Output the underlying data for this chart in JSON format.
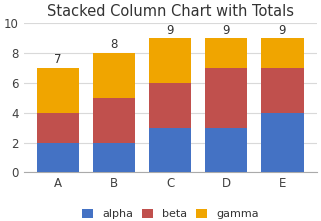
{
  "categories": [
    "A",
    "B",
    "C",
    "D",
    "E"
  ],
  "alpha": [
    2,
    2,
    3,
    3,
    4
  ],
  "beta": [
    2,
    3,
    3,
    4,
    3
  ],
  "gamma": [
    3,
    3,
    3,
    2,
    2
  ],
  "totals": [
    7,
    8,
    9,
    9,
    9
  ],
  "colors": {
    "alpha": "#4472C4",
    "beta": "#C0504D",
    "gamma": "#F0A500"
  },
  "title": "Stacked Column Chart with Totals",
  "ylim": [
    0,
    10
  ],
  "yticks": [
    0,
    2,
    4,
    6,
    8,
    10
  ],
  "bar_width": 0.75,
  "background_color": "#FFFFFF",
  "title_fontsize": 10.5,
  "tick_fontsize": 8.5,
  "legend_fontsize": 8,
  "total_fontsize": 8.5,
  "grid_color": "#D9D9D9",
  "grid_linewidth": 0.8
}
